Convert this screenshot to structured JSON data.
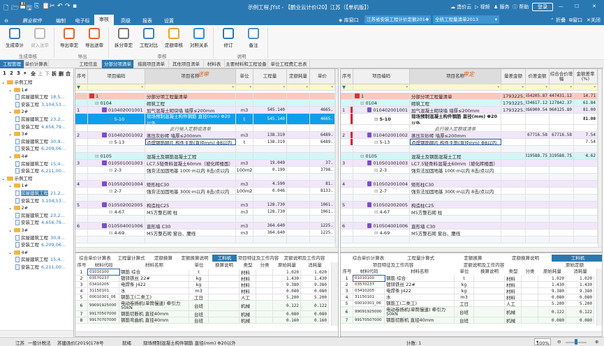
{
  "titlebar": {
    "title": "示例工程.JYst - 【鹏业云计价i20】江苏（【单机版】）",
    "cloud": "造价云",
    "video": "视频",
    "service": "服务",
    "help": "帮助",
    "login": "登录",
    "icons": [
      "new-file-icon",
      "open-folder-icon",
      "save-icon",
      "save-as-icon",
      "copy-icon",
      "paste-icon",
      "cut-icon",
      "undo-icon",
      "redo-icon",
      "customize-icon"
    ]
  },
  "menu": {
    "brand": "鹏业软件",
    "items": [
      "编制",
      "电子标",
      "审核",
      "高级",
      "报表",
      "设置"
    ],
    "active": 2,
    "lib_window": "库窗口",
    "quota_lib": "江苏省安装工程计价定额2014",
    "bill_lib": "全统工程量清单2013",
    "fold": "折叠",
    "window": "窗口",
    "close": "关闭"
  },
  "ribbon": {
    "groups": [
      {
        "label": "生成审核",
        "buttons": [
          {
            "label": "生成审计",
            "icon": "audit-icon"
          },
          {
            "label": "调入送审",
            "icon": "import-audit-icon",
            "disabled": true
          }
        ]
      },
      {
        "label": "导出",
        "buttons": [
          {
            "label": "导出审定",
            "icon": "export-approved-icon"
          },
          {
            "label": "导出送审",
            "icon": "export-submitted-icon"
          }
        ]
      },
      {
        "label": "审核",
        "buttons": [
          {
            "label": "拆分审定",
            "icon": "split-icon"
          },
          {
            "label": "工程对比",
            "icon": "compare-icon"
          },
          {
            "label": "定额审核",
            "icon": "quota-audit-icon"
          },
          {
            "label": "对照关系",
            "icon": "gear-icon"
          }
        ]
      },
      {
        "label": "说明",
        "buttons": [
          {
            "label": "修订",
            "icon": "revise-icon"
          },
          {
            "label": "备注",
            "icon": "note-icon"
          }
        ]
      }
    ]
  },
  "left_tabs": [
    "工程管理",
    "单价计算表"
  ],
  "main_tabs": [
    "工程信息",
    "分部分项清单",
    "措施项目清单",
    "其他项目清单",
    "材料表",
    "主要材料和工程设备",
    "单位工程费汇总表"
  ],
  "main_tab_active": 1,
  "tree": {
    "toolbar": [
      "1",
      "2",
      "3",
      "▾",
      "全",
      "上",
      "下",
      "拆",
      "删",
      "合"
    ],
    "nodes": [
      {
        "level": 0,
        "type": "folder",
        "label": "示例工程"
      },
      {
        "level": 1,
        "type": "folder",
        "label": "1#"
      },
      {
        "level": 2,
        "type": "file",
        "label": "房屋建筑工程",
        "value": "18,5..."
      },
      {
        "level": 2,
        "type": "file",
        "label": "安装工程",
        "value": "3,104,53..."
      },
      {
        "level": 1,
        "type": "folder",
        "label": "2#"
      },
      {
        "level": 2,
        "type": "file",
        "label": "房屋建筑工程",
        "value": "23,2..."
      },
      {
        "level": 2,
        "type": "file",
        "label": "安装工程",
        "value": "4,656,79..."
      },
      {
        "level": 1,
        "type": "folder",
        "label": "3#"
      },
      {
        "level": 2,
        "type": "file",
        "label": "房屋建筑工程",
        "value": "30,9..."
      },
      {
        "level": 2,
        "type": "file",
        "label": "安装工程",
        "value": "6,209,06..."
      },
      {
        "level": 1,
        "type": "folder",
        "label": "4#"
      },
      {
        "level": 2,
        "type": "file",
        "label": "房屋建筑工程",
        "value": "15,4..."
      },
      {
        "level": 2,
        "type": "file",
        "label": "安装工程",
        "value": "6,211,00..."
      },
      {
        "level": 0,
        "type": "folder",
        "label": "示例工程"
      },
      {
        "level": 1,
        "type": "folder",
        "label": "1#"
      },
      {
        "level": 2,
        "type": "file",
        "label": "房屋建筑工程",
        "value": "21,2...",
        "selected": true
      },
      {
        "level": 2,
        "type": "file",
        "label": "安装工程",
        "value": "3,104,53..."
      },
      {
        "level": 1,
        "type": "folder",
        "label": "2#"
      },
      {
        "level": 2,
        "type": "file",
        "label": "房屋建筑工程",
        "value": "23,2..."
      },
      {
        "level": 2,
        "type": "file",
        "label": "安装工程",
        "value": "4,656,79..."
      },
      {
        "level": 1,
        "type": "folder",
        "label": "3#"
      },
      {
        "level": 2,
        "type": "file",
        "label": "房屋建筑工程",
        "value": "30,9..."
      },
      {
        "level": 2,
        "type": "file",
        "label": "安装工程",
        "value": "6,209,06..."
      },
      {
        "level": 1,
        "type": "folder",
        "label": "4#"
      },
      {
        "level": 2,
        "type": "file",
        "label": "房屋建筑工程",
        "value": "15,4..."
      },
      {
        "level": 2,
        "type": "file",
        "label": "安装工程",
        "value": "6,211,00..."
      }
    ]
  },
  "submitted_grid": {
    "annotation": "送审",
    "columns": [
      "序号",
      "项目编码",
      "项目名称",
      "单位",
      "工程量",
      "定额耗量",
      "单价"
    ],
    "rows": [
      {
        "type": "root",
        "cells": [
          "",
          "1",
          "分部分项工程量清单",
          "",
          "",
          "",
          ""
        ]
      },
      {
        "type": "section",
        "cells": [
          "",
          "0104",
          "砌筑工程",
          "",
          "",
          "",
          ""
        ]
      },
      {
        "type": "item",
        "cells": [
          "1",
          "010402001001",
          "加气混凝土砌块墙 墙厚≤200mm",
          "m3",
          "545.140",
          "",
          "4665."
        ]
      },
      {
        "type": "sel",
        "cells": [
          "",
          "5-10",
          "现场预制混凝土构件钢筋 直径(mm) Φ20以外",
          "t",
          "545.140",
          "",
          "4665."
        ]
      },
      {
        "type": "note",
        "cells": [
          "",
          "",
          "此行输入定额或清单",
          "",
          "",
          "",
          ""
        ]
      },
      {
        "type": "item",
        "cells": [
          "2",
          "010402001002",
          "蒸压灰砂砖 墙厚≤200mm",
          "m3",
          "138.310",
          "",
          "6489."
        ]
      },
      {
        "type": "sub",
        "cells": [
          "",
          "5-13",
          "点焊钢筋网片 构件主筋(直径mm) Φ8以内",
          "t",
          "138.310",
          "",
          "6489."
        ]
      },
      {
        "type": "blank",
        "cells": [
          "",
          "",
          "",
          "",
          "",
          "",
          ""
        ]
      },
      {
        "type": "section",
        "cells": [
          "",
          "0105",
          "混凝土及钢筋混凝土工程",
          "",
          "",
          "",
          ""
        ]
      },
      {
        "type": "item",
        "cells": [
          "3",
          "010501001003",
          "LC7.5轻骨料混凝土60mm（坡化砖楼面）",
          "m3",
          "19.049",
          "",
          "37."
        ]
      },
      {
        "type": "sub",
        "cells": [
          "",
          "2-3",
          "强夯法加固地基 100t·m以内 8击/点以内",
          "100m2",
          "0.190",
          "",
          "3798."
        ]
      },
      {
        "type": "blank",
        "cells": [
          "",
          "",
          "",
          "",
          "",
          "",
          ""
        ]
      },
      {
        "type": "item",
        "cells": [
          "4",
          "010502001004",
          "矩形柱C30",
          "m3",
          "4.590",
          "",
          "81."
        ]
      },
      {
        "type": "sub",
        "cells": [
          "",
          "2-7",
          "强夯法加固地基 300t·m以内 8击/点以内",
          "100m2",
          "0.046",
          "",
          "8133."
        ]
      },
      {
        "type": "blank",
        "cells": [
          "",
          "",
          "",
          "",
          "",
          "",
          ""
        ]
      },
      {
        "type": "item",
        "cells": [
          "5",
          "010502002005",
          "构造柱C25",
          "m3",
          "128.730",
          "",
          "1061."
        ]
      },
      {
        "type": "sub",
        "cells": [
          "",
          "4-67",
          "M5方整石砌 柱",
          "m3",
          "128.730",
          "",
          "1061."
        ]
      },
      {
        "type": "blank",
        "cells": [
          "",
          "",
          "",
          "",
          "",
          "",
          ""
        ]
      },
      {
        "type": "item",
        "cells": [
          "6",
          "010504001006",
          "直形墙 C30",
          "m3",
          "364.640",
          "",
          "1225."
        ]
      },
      {
        "type": "sub",
        "cells": [
          "",
          "4-69",
          "M5方整石砌 窗台、腰线",
          "m3",
          "364.640",
          "",
          "1225."
        ]
      },
      {
        "type": "blank",
        "cells": [
          "",
          "",
          "",
          "",
          "",
          "",
          ""
        ]
      }
    ]
  },
  "approved_grid": {
    "annotation": "审定",
    "columns": [
      "序号",
      "项目编码",
      "项目名称",
      "量差金额",
      "价差金额",
      "综合合价增幅",
      "金额差率(%)"
    ],
    "rows": [
      {
        "type": "root",
        "cells": [
          "",
          "1",
          "分部分项工程量清单",
          "1793225.26",
          "654205.87",
          "2447431.12",
          "14.71"
        ]
      },
      {
        "type": "section",
        "cells": [
          "",
          "0104",
          "砌筑工程",
          "1793225.26",
          "334617.12",
          "2127842.37",
          "61.84"
        ]
      },
      {
        "type": "item",
        "cells": [
          "1",
          "010402001001",
          "加气混凝土砌块墙 墙厚≤200mm",
          "1793225.26",
          "266900.54",
          "2060125.80",
          "81.00"
        ],
        "flag": true
      },
      {
        "type": "sub",
        "cells": [
          "",
          "5-10",
          "现场预制混凝土构件钢筋 直径(mm) Φ20以外",
          "",
          "",
          "",
          "81.00"
        ],
        "flag": true,
        "bold": true
      },
      {
        "type": "note",
        "cells": [
          "",
          "",
          "此行输入定额或清单",
          "",
          "",
          "",
          ""
        ]
      },
      {
        "type": "item",
        "cells": [
          "2",
          "010402001002",
          "蒸压灰砂砖 墙厚≤200mm",
          "",
          "67716.58",
          "67716.58",
          "7.54"
        ],
        "flag": true
      },
      {
        "type": "sub",
        "cells": [
          "",
          "5-13",
          "点焊钢筋网片 构件主筋(直径mm) Φ8以内",
          "",
          "",
          "",
          "7.54"
        ],
        "flag": true
      },
      {
        "type": "blank",
        "cells": [
          "",
          "",
          "",
          "",
          "",
          "",
          ""
        ]
      },
      {
        "type": "section",
        "cells": [
          "",
          "0105",
          "混凝土及钢筋混凝土工程",
          "",
          "319588.75",
          "319588.75",
          "4.62"
        ]
      },
      {
        "type": "item",
        "cells": [
          "3",
          "010501001003",
          "LC7.5轻骨料混凝土60mm（坡化砖楼面）",
          "",
          "",
          "",
          ""
        ]
      },
      {
        "type": "sub",
        "cells": [
          "",
          "2-3",
          "强夯法加固地基 100t·m以内 8击/点以内",
          "",
          "",
          "",
          ""
        ]
      },
      {
        "type": "blank",
        "cells": [
          "",
          "",
          "",
          "",
          "",
          "",
          ""
        ]
      },
      {
        "type": "item",
        "cells": [
          "4",
          "010502001004",
          "矩形柱C30",
          "",
          "",
          "",
          ""
        ]
      },
      {
        "type": "sub",
        "cells": [
          "",
          "2-7",
          "强夯法加固地基 300t·m以内 8击/点以内",
          "",
          "",
          "",
          ""
        ]
      },
      {
        "type": "blank",
        "cells": [
          "",
          "",
          "",
          "",
          "",
          "",
          ""
        ]
      },
      {
        "type": "item",
        "cells": [
          "5",
          "010502002005",
          "构造柱C25",
          "",
          "",
          "",
          ""
        ]
      },
      {
        "type": "sub",
        "cells": [
          "",
          "4-67",
          "M5方整石砌 柱",
          "",
          "",
          "",
          ""
        ]
      },
      {
        "type": "blank",
        "cells": [
          "",
          "",
          "",
          "",
          "",
          "",
          ""
        ]
      },
      {
        "type": "item",
        "cells": [
          "6",
          "010504001006",
          "直形墙 C30",
          "",
          "",
          "",
          ""
        ]
      },
      {
        "type": "sub",
        "cells": [
          "",
          "4-69",
          "M5方整石砌 窗台、腰线",
          "",
          "",
          "",
          ""
        ]
      },
      {
        "type": "blank",
        "cells": [
          "",
          "",
          "",
          "",
          "",
          "",
          ""
        ]
      }
    ]
  },
  "bottom_left": {
    "tabs": [
      "综合单价计算表",
      "工程量计算式",
      "定额换算",
      "定额换算说明",
      "工料机",
      "项目特征及工作内容",
      "定额说明及工作内容"
    ],
    "active": 4,
    "columns": [
      "序号",
      "材料代码",
      "材料名称",
      "单位",
      "换算说明",
      "类型",
      "分类",
      "原始耗量",
      "消耗量"
    ],
    "rows": [
      [
        "1",
        "01010100",
        "钢筋 综合",
        "t",
        "",
        "材料",
        "",
        "1.020",
        "1.020"
      ],
      [
        "2",
        "03570237",
        "镀锌铁丝 22#",
        "kg",
        "",
        "材料",
        "",
        "1.430",
        "1.430"
      ],
      [
        "3",
        "03410205",
        "电焊条 J422",
        "kg",
        "",
        "材料",
        "",
        "9.380",
        "9.380"
      ],
      [
        "4",
        "31150101",
        "水",
        "m3",
        "",
        "材料",
        "",
        "0.080",
        "0.080"
      ],
      [
        "5",
        "00010301_06",
        "钢筋工(二类工)",
        "工日",
        "",
        "人工",
        "",
        "5.200",
        "5.200"
      ],
      [
        "6",
        "99091925000",
        "电动卷扬机(单筒慢速) 牵引力50kN",
        "台班",
        "",
        "机械",
        "",
        "0.122",
        "0.122"
      ],
      [
        "7",
        "99170507000",
        "钢筋切断机 直径40mm",
        "台班",
        "",
        "机械",
        "",
        "0.080",
        "0.080"
      ],
      [
        "8",
        "99170707000",
        "钢筋弯曲机 直径40mm",
        "台班",
        "",
        "机械",
        "",
        "0.160",
        "0.160"
      ]
    ]
  },
  "bottom_right": {
    "tabs": [
      "综合单价计算表",
      "工程量计算式",
      "定额换算",
      "定额换算说明",
      "工料机"
    ],
    "tabs2": [
      "项目特征及工作内容",
      "定额说明及工作内容",
      "原始定额"
    ],
    "active": 4,
    "columns": [
      "序号",
      "材料代码",
      "材料名称",
      "单位",
      "换算说明",
      "类型",
      "分类",
      "原始耗量",
      "消耗量"
    ],
    "rows": [
      [
        "1",
        "01010100",
        "钢筋 综合",
        "t",
        "",
        "材料",
        "",
        "1.020",
        "1.020"
      ],
      [
        "2",
        "03570237",
        "镀锌铁丝 22#",
        "kg",
        "",
        "材料",
        "",
        "1.430",
        "1.430"
      ],
      [
        "3",
        "03410205",
        "电焊条 J422",
        "kg",
        "",
        "材料",
        "",
        "9.380",
        "9.380"
      ],
      [
        "4",
        "31150101",
        "水",
        "m3",
        "",
        "材料",
        "",
        "0.080",
        "0.080"
      ],
      [
        "5",
        "00010301_06",
        "钢筋工(二类工)",
        "工日",
        "",
        "人工",
        "",
        "5.200",
        "5.200"
      ],
      [
        "6",
        "99091925000",
        "电动卷扬机(单筒慢速) 牵引力50kN",
        "台班",
        "",
        "机械",
        "",
        "0.122",
        "0.122"
      ],
      [
        "7",
        "99170507000",
        "钢筋切断机 直径40mm",
        "台班",
        "",
        "机械",
        "",
        "0.080",
        "0.080"
      ]
    ]
  },
  "status": {
    "region": "江苏",
    "tax": "一般计税法",
    "doc": "苏建函价[2019]178号",
    "state": "就绪",
    "selection": "现场预制混凝土构件钢筋 直径(mm) Φ20以外",
    "count": "计数: 1",
    "zoom": "100%",
    "zoom_level": 0.5
  },
  "colors": {
    "brand": "#2a78b2",
    "root_row": "#f8c9bd",
    "section_row": "#d3f6f8",
    "item_row": "#f1e6fa",
    "selected_row": "#109ee8",
    "flag": "#e0202a"
  }
}
